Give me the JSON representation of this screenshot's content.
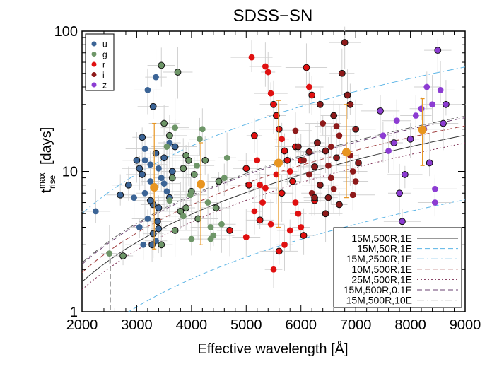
{
  "chart_data": {
    "type": "scatter",
    "title": "SDSS−SN",
    "xlabel": "Effective wavelength [Å]",
    "ylabel_main": "t",
    "ylabel_sup": "max",
    "ylabel_sub": "rise",
    "ylabel_unit": "[days]",
    "xlim": [
      2000,
      9000
    ],
    "ylim": [
      1,
      100
    ],
    "yscale": "log",
    "x_ticks": [
      "2000",
      "3000",
      "4000",
      "5000",
      "6000",
      "7000",
      "8000",
      "9000"
    ],
    "y_ticks": [
      "1",
      "10",
      "100"
    ],
    "grid": false,
    "legend_filters": {
      "position": "top-left",
      "entries": [
        {
          "label": "u",
          "color": "#3b6496"
        },
        {
          "label": "g",
          "color": "#6e9668"
        },
        {
          "label": "r",
          "color": "#e01010"
        },
        {
          "label": "i",
          "color": "#8e1a1a"
        },
        {
          "label": "z",
          "color": "#8c3cd2"
        }
      ]
    },
    "series": [
      {
        "name": "u",
        "color": "#3b6496",
        "points": [
          [
            2250,
            5.2
          ],
          [
            2700,
            6.8
          ],
          [
            2850,
            8.0
          ],
          [
            2950,
            6.5
          ],
          [
            3050,
            10.5
          ],
          [
            3100,
            17.5
          ],
          [
            3150,
            12.0
          ],
          [
            3200,
            38
          ],
          [
            3250,
            8.5
          ],
          [
            3300,
            29
          ],
          [
            3300,
            5.8
          ],
          [
            3350,
            47
          ],
          [
            3350,
            13.5
          ],
          [
            3400,
            10.5
          ],
          [
            3400,
            3.9
          ],
          [
            3500,
            12.5
          ],
          [
            3550,
            7.2
          ],
          [
            3600,
            16.0
          ],
          [
            3650,
            10.0
          ],
          [
            3700,
            15.0
          ],
          [
            3200,
            4.6
          ],
          [
            3300,
            3.6
          ],
          [
            3350,
            3.2
          ],
          [
            3100,
            9.5
          ],
          [
            3000,
            12.0
          ],
          [
            3150,
            7.0
          ],
          [
            3400,
            5.5
          ],
          [
            3250,
            6.2
          ],
          [
            3050,
            4.0
          ],
          [
            3500,
            8.2
          ],
          [
            3600,
            6.5
          ],
          [
            3450,
            9.0
          ],
          [
            3150,
            14.5
          ],
          [
            3250,
            11.2
          ],
          [
            3380,
            4.4
          ],
          [
            3280,
            3.0
          ],
          [
            3120,
            3.0
          ]
        ]
      },
      {
        "name": "g",
        "color": "#6e9668",
        "points": [
          [
            2500,
            2.6
          ],
          [
            2750,
            2.5
          ],
          [
            3450,
            57
          ],
          [
            3500,
            22
          ],
          [
            3600,
            18
          ],
          [
            3700,
            20.5
          ],
          [
            3750,
            51
          ],
          [
            3850,
            10.5
          ],
          [
            3900,
            13.0
          ],
          [
            3950,
            12.0
          ],
          [
            4000,
            7.2
          ],
          [
            4050,
            9.5
          ],
          [
            4100,
            11.0
          ],
          [
            4150,
            17.0
          ],
          [
            4200,
            20.0
          ],
          [
            4250,
            12.0
          ],
          [
            4300,
            6.0
          ],
          [
            4350,
            4.0
          ],
          [
            4400,
            3.5
          ],
          [
            4450,
            5.5
          ],
          [
            4500,
            8.5
          ],
          [
            4550,
            4.2
          ],
          [
            4600,
            9.0
          ],
          [
            4650,
            12.5
          ],
          [
            3550,
            15.0
          ],
          [
            3650,
            9.0
          ],
          [
            3800,
            5.2
          ],
          [
            3850,
            4.8
          ],
          [
            3900,
            5.5
          ],
          [
            4000,
            3.3
          ],
          [
            3700,
            3.8
          ],
          [
            3450,
            3.0
          ],
          [
            3600,
            6.2
          ],
          [
            4350,
            3.3
          ],
          [
            4120,
            4.6
          ],
          [
            3980,
            6.8
          ]
        ]
      },
      {
        "name": "r",
        "color": "#e01010",
        "points": [
          [
            4700,
            3.8
          ],
          [
            5000,
            3.4
          ],
          [
            5100,
            65
          ],
          [
            5150,
            18.0
          ],
          [
            5200,
            12.0
          ],
          [
            5250,
            8.0
          ],
          [
            5300,
            6.0
          ],
          [
            5350,
            56
          ],
          [
            5400,
            51
          ],
          [
            5450,
            36
          ],
          [
            5500,
            30
          ],
          [
            5550,
            25
          ],
          [
            5600,
            20
          ],
          [
            5650,
            17.0
          ],
          [
            5700,
            14.0
          ],
          [
            5750,
            12.0
          ],
          [
            5800,
            10.0
          ],
          [
            5850,
            8.5
          ],
          [
            5900,
            6.0
          ],
          [
            5950,
            5.0
          ],
          [
            6000,
            4.0
          ],
          [
            6050,
            3.5
          ],
          [
            6100,
            55
          ],
          [
            6150,
            40
          ],
          [
            6200,
            35
          ],
          [
            5500,
            2.0
          ],
          [
            5600,
            2.7
          ],
          [
            5700,
            3.0
          ],
          [
            5000,
            10.5
          ],
          [
            5050,
            8.0
          ],
          [
            5250,
            4.5
          ],
          [
            5450,
            4.2
          ],
          [
            5550,
            9.5
          ],
          [
            5650,
            7.0
          ],
          [
            5900,
            15.0
          ],
          [
            6000,
            12.0
          ],
          [
            5350,
            7.6
          ],
          [
            5800,
            3.8
          ],
          [
            5150,
            5.2
          ],
          [
            6250,
            6.2
          ]
        ]
      },
      {
        "name": "i",
        "color": "#8e1a1a",
        "points": [
          [
            5900,
            19.5
          ],
          [
            5950,
            15.0
          ],
          [
            6050,
            12.0
          ],
          [
            6150,
            9.5
          ],
          [
            6200,
            7.0
          ],
          [
            6250,
            6.5
          ],
          [
            6300,
            16.0
          ],
          [
            6350,
            30
          ],
          [
            6400,
            22
          ],
          [
            6450,
            14.0
          ],
          [
            6500,
            11.0
          ],
          [
            6550,
            9.0
          ],
          [
            6600,
            25
          ],
          [
            6650,
            21
          ],
          [
            6700,
            18.0
          ],
          [
            6750,
            50
          ],
          [
            6800,
            83
          ],
          [
            6850,
            35
          ],
          [
            6900,
            13.0
          ],
          [
            6950,
            10.0
          ],
          [
            7000,
            8.5
          ],
          [
            6500,
            6.5
          ],
          [
            6600,
            7.5
          ],
          [
            6700,
            5.8
          ],
          [
            6900,
            30
          ],
          [
            7000,
            20
          ],
          [
            6450,
            5.0
          ],
          [
            6550,
            15.0
          ],
          [
            6650,
            12.5
          ],
          [
            6350,
            8.0
          ],
          [
            6250,
            10.8
          ],
          [
            6150,
            13.8
          ],
          [
            7050,
            11.5
          ],
          [
            6950,
            6.8
          ]
        ]
      },
      {
        "name": "z",
        "color": "#8c3cd2",
        "points": [
          [
            7450,
            27
          ],
          [
            7500,
            18.0
          ],
          [
            7700,
            16.0
          ],
          [
            7750,
            23
          ],
          [
            7850,
            4.4
          ],
          [
            7900,
            9.5
          ],
          [
            8000,
            17.0
          ],
          [
            8100,
            25
          ],
          [
            8200,
            28
          ],
          [
            8300,
            40
          ],
          [
            8400,
            30
          ],
          [
            8450,
            6.0
          ],
          [
            8450,
            7.5
          ],
          [
            8500,
            73
          ],
          [
            8550,
            38
          ],
          [
            8600,
            22
          ],
          [
            8650,
            30
          ],
          [
            7800,
            7.0
          ],
          [
            8350,
            11.5
          ],
          [
            7600,
            14.0
          ],
          [
            8250,
            20.0
          ]
        ]
      }
    ],
    "means": {
      "color": "#e89520",
      "points": [
        {
          "x": 3320,
          "y": 7.7,
          "lo": 2.8,
          "hi": 22
        },
        {
          "x": 4170,
          "y": 8.1,
          "lo": 3.0,
          "hi": 16
        },
        {
          "x": 5590,
          "y": 11.5,
          "lo": 4.0,
          "hi": 32
        },
        {
          "x": 6830,
          "y": 13.7,
          "lo": 6.5,
          "hi": 30
        },
        {
          "x": 8220,
          "y": 19.8,
          "lo": 11.0,
          "hi": 33
        }
      ]
    },
    "models": {
      "position": "bottom-right",
      "entries": [
        {
          "label": "15M,500R,1E",
          "color": "#333333",
          "dash": "",
          "a": 15.0
        },
        {
          "label": "15M,50R,1E",
          "color": "#5ab4e6",
          "dash": "7,4",
          "a": 5.2
        },
        {
          "label": "15M,2500R,1E",
          "color": "#5ab4e6",
          "dash": "10,4,2,4",
          "a": 46.0
        },
        {
          "label": "10M,500R,1E",
          "color": "#a04040",
          "dash": "7,4",
          "a": 17.5
        },
        {
          "label": "25M,500R,1E",
          "color": "#7a2a50",
          "dash": "2,3",
          "a": 13.2
        },
        {
          "label": "15M,500R,0.1E",
          "color": "#6a4070",
          "dash": "7,4",
          "a": 20.0
        },
        {
          "label": "15M,500R,10E",
          "color": "#555555",
          "dash": "10,4,2,4",
          "a": 20.5
        }
      ]
    }
  }
}
